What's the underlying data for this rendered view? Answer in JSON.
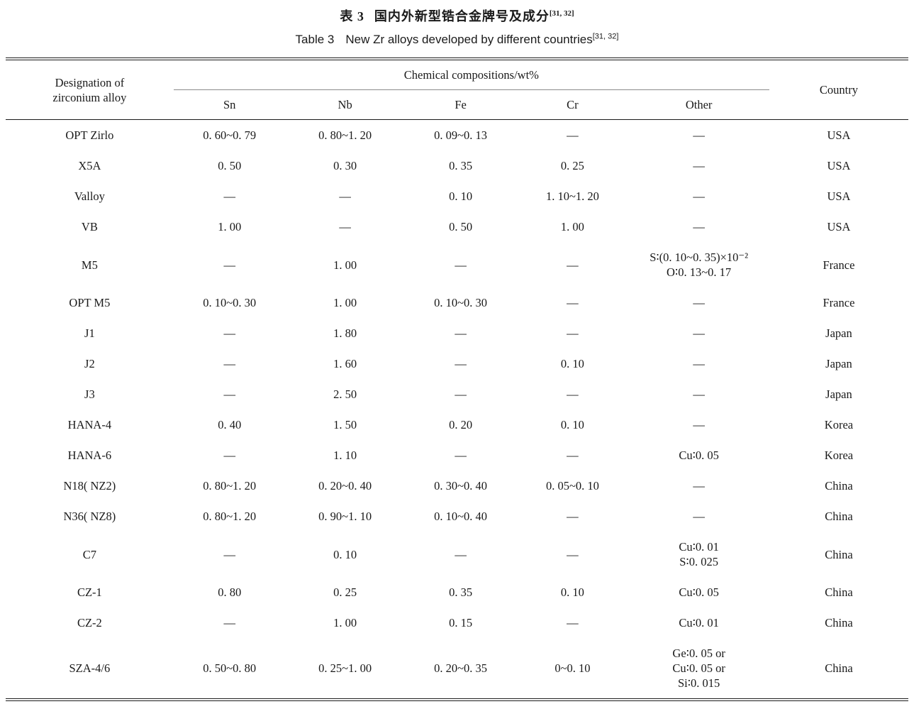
{
  "caption_cn": {
    "label": "表 3",
    "text": "国内外新型锆合金牌号及成分",
    "ref": "[31, 32]"
  },
  "caption_en": {
    "label": "Table 3",
    "text": "New Zr alloys developed by different countries",
    "ref": "[31, 32]"
  },
  "table": {
    "header": {
      "designation": [
        "Designation of",
        "zirconium alloy"
      ],
      "chem_group": "Chemical compositions/wt%",
      "sn": "Sn",
      "nb": "Nb",
      "fe": "Fe",
      "cr": "Cr",
      "other": "Other",
      "country": "Country"
    },
    "rows": [
      {
        "designation": "OPT Zirlo",
        "sn": "0. 60~0. 79",
        "nb": "0. 80~1. 20",
        "fe": "0. 09~0. 13",
        "cr": "—",
        "other": "—",
        "country": "USA"
      },
      {
        "designation": "X5A",
        "sn": "0. 50",
        "nb": "0. 30",
        "fe": "0. 35",
        "cr": "0. 25",
        "other": "—",
        "country": "USA"
      },
      {
        "designation": "Valloy",
        "sn": "—",
        "nb": "—",
        "fe": "0. 10",
        "cr": "1. 10~1. 20",
        "other": "—",
        "country": "USA"
      },
      {
        "designation": "VB",
        "sn": "1. 00",
        "nb": "—",
        "fe": "0. 50",
        "cr": "1. 00",
        "other": "—",
        "country": "USA"
      },
      {
        "designation": "M5",
        "sn": "—",
        "nb": "1. 00",
        "fe": "—",
        "cr": "—",
        "other": [
          "S∶(0. 10~0. 35)×10⁻²",
          "O∶0. 13~0. 17"
        ],
        "country": "France"
      },
      {
        "designation": "OPT M5",
        "sn": "0. 10~0. 30",
        "nb": "1. 00",
        "fe": "0. 10~0. 30",
        "cr": "—",
        "other": "—",
        "country": "France"
      },
      {
        "designation": "J1",
        "sn": "—",
        "nb": "1. 80",
        "fe": "—",
        "cr": "—",
        "other": "—",
        "country": "Japan"
      },
      {
        "designation": "J2",
        "sn": "—",
        "nb": "1. 60",
        "fe": "—",
        "cr": "0. 10",
        "other": "—",
        "country": "Japan"
      },
      {
        "designation": "J3",
        "sn": "—",
        "nb": "2. 50",
        "fe": "—",
        "cr": "—",
        "other": "—",
        "country": "Japan"
      },
      {
        "designation": "HANA-4",
        "sn": "0. 40",
        "nb": "1. 50",
        "fe": "0. 20",
        "cr": "0. 10",
        "other": "—",
        "country": "Korea"
      },
      {
        "designation": "HANA-6",
        "sn": "—",
        "nb": "1. 10",
        "fe": "—",
        "cr": "—",
        "other": "Cu∶0. 05",
        "country": "Korea"
      },
      {
        "designation": "N18( NZ2)",
        "sn": "0. 80~1. 20",
        "nb": "0. 20~0. 40",
        "fe": "0. 30~0. 40",
        "cr": "0. 05~0. 10",
        "other": "—",
        "country": "China"
      },
      {
        "designation": "N36( NZ8)",
        "sn": "0. 80~1. 20",
        "nb": "0. 90~1. 10",
        "fe": "0. 10~0. 40",
        "cr": "—",
        "other": "—",
        "country": "China"
      },
      {
        "designation": "C7",
        "sn": "—",
        "nb": "0. 10",
        "fe": "—",
        "cr": "—",
        "other": [
          "Cu∶0. 01",
          "S∶0. 025"
        ],
        "country": "China"
      },
      {
        "designation": "CZ-1",
        "sn": "0. 80",
        "nb": "0. 25",
        "fe": "0. 35",
        "cr": "0. 10",
        "other": "Cu∶0. 05",
        "country": "China"
      },
      {
        "designation": "CZ-2",
        "sn": "—",
        "nb": "1. 00",
        "fe": "0. 15",
        "cr": "—",
        "other": "Cu∶0. 01",
        "country": "China"
      },
      {
        "designation": "SZA-4/6",
        "sn": "0. 50~0. 80",
        "nb": "0. 25~1. 00",
        "fe": "0. 20~0. 35",
        "cr": "0~0. 10",
        "other": [
          "Ge∶0. 05 or",
          "Cu∶0. 05 or",
          "Si∶0. 015"
        ],
        "country": "China"
      }
    ]
  },
  "colors": {
    "background": "#ffffff",
    "text": "#1a1a1a",
    "rule": "#1a1a1a",
    "chem_underline": "#8a8a8a"
  }
}
